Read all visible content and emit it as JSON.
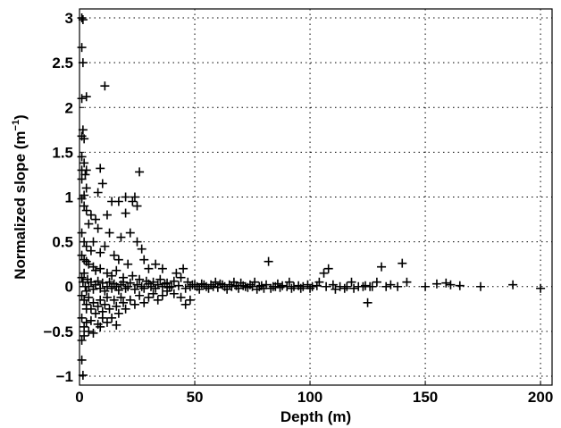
{
  "chart_data": {
    "type": "scatter",
    "marker": "+",
    "xlabel": "Depth (m)",
    "ylabel": {
      "prefix": "Normalized slope (m",
      "superscript": "−1",
      "suffix": ")"
    },
    "xlim": [
      0,
      205
    ],
    "ylim": [
      -1.1,
      3.1
    ],
    "xticks": [
      0,
      50,
      100,
      150,
      200
    ],
    "xtick_labels": [
      "0",
      "50",
      "100",
      "150",
      "200"
    ],
    "yticks": [
      -1,
      -0.5,
      0,
      0.5,
      1,
      1.5,
      2,
      2.5,
      3
    ],
    "ytick_labels": [
      "−1",
      "−0.5",
      "0",
      "0.5",
      "1",
      "1.5",
      "2",
      "2.5",
      "3"
    ],
    "grid": true,
    "color": "#000000",
    "points": [
      [
        1,
        3.0
      ],
      [
        1.5,
        2.98
      ],
      [
        1,
        2.67
      ],
      [
        1.5,
        2.5
      ],
      [
        1,
        2.1
      ],
      [
        3,
        2.12
      ],
      [
        11,
        2.24
      ],
      [
        1.5,
        1.75
      ],
      [
        1,
        1.68
      ],
      [
        2,
        1.65
      ],
      [
        1,
        1.45
      ],
      [
        2,
        1.38
      ],
      [
        1,
        1.3
      ],
      [
        2.5,
        1.25
      ],
      [
        3,
        1.3
      ],
      [
        9,
        1.32
      ],
      [
        26,
        1.28
      ],
      [
        1,
        1.2
      ],
      [
        3,
        1.1
      ],
      [
        2,
        1.02
      ],
      [
        8,
        1.05
      ],
      [
        10,
        1.15
      ],
      [
        20,
        1.0
      ],
      [
        23,
        0.95
      ],
      [
        17,
        0.95
      ],
      [
        14,
        0.95
      ],
      [
        24,
        1.0
      ],
      [
        25,
        0.9
      ],
      [
        1,
        0.98
      ],
      [
        2,
        0.9
      ],
      [
        3,
        0.85
      ],
      [
        5,
        0.8
      ],
      [
        7,
        0.75
      ],
      [
        12,
        0.8
      ],
      [
        20,
        0.82
      ],
      [
        4,
        0.7
      ],
      [
        8,
        0.65
      ],
      [
        13,
        0.6
      ],
      [
        18,
        0.55
      ],
      [
        22,
        0.6
      ],
      [
        25,
        0.5
      ],
      [
        27,
        0.42
      ],
      [
        1,
        0.6
      ],
      [
        2,
        0.5
      ],
      [
        3,
        0.45
      ],
      [
        5,
        0.4
      ],
      [
        6,
        0.5
      ],
      [
        9,
        0.38
      ],
      [
        11,
        0.45
      ],
      [
        15,
        0.35
      ],
      [
        17,
        0.3
      ],
      [
        21,
        0.25
      ],
      [
        28,
        0.3
      ],
      [
        30,
        0.2
      ],
      [
        33,
        0.25
      ],
      [
        36,
        0.2
      ],
      [
        1,
        0.35
      ],
      [
        2,
        0.3
      ],
      [
        3,
        0.28
      ],
      [
        4,
        0.25
      ],
      [
        6,
        0.22
      ],
      [
        7,
        0.18
      ],
      [
        9,
        0.2
      ],
      [
        12,
        0.15
      ],
      [
        14,
        0.12
      ],
      [
        16,
        0.18
      ],
      [
        19,
        0.1
      ],
      [
        23,
        0.12
      ],
      [
        26,
        0.08
      ],
      [
        29,
        0.06
      ],
      [
        32,
        0.05
      ],
      [
        35,
        0.08
      ],
      [
        38,
        0.04
      ],
      [
        41,
        0.06
      ],
      [
        44,
        0.1
      ],
      [
        42,
        0.15
      ],
      [
        45,
        0.2
      ],
      [
        47,
        0.05
      ],
      [
        49,
        0.02
      ],
      [
        51,
        0.0
      ],
      [
        53,
        0.03
      ],
      [
        55,
        0.0
      ],
      [
        57,
        0.02
      ],
      [
        59,
        0.05
      ],
      [
        61,
        0.03
      ],
      [
        63,
        0.0
      ],
      [
        65,
        0.02
      ],
      [
        68,
        0.01
      ],
      [
        70,
        0.04
      ],
      [
        72,
        0.0
      ],
      [
        74,
        0.02
      ],
      [
        76,
        0.05
      ],
      [
        78,
        0.0
      ],
      [
        80,
        -0.02
      ],
      [
        82,
        0.28
      ],
      [
        84,
        0.0
      ],
      [
        86,
        0.03
      ],
      [
        88,
        0.01
      ],
      [
        91,
        0.05
      ],
      [
        93,
        0.0
      ],
      [
        96,
        -0.02
      ],
      [
        99,
        0.02
      ],
      [
        101,
        0.0
      ],
      [
        106,
        0.15
      ],
      [
        108,
        0.2
      ],
      [
        110,
        0.02
      ],
      [
        113,
        0.0
      ],
      [
        115,
        -0.02
      ],
      [
        118,
        0.05
      ],
      [
        121,
        0.0
      ],
      [
        123,
        0.0
      ],
      [
        125,
        -0.18
      ],
      [
        127,
        0.0
      ],
      [
        129,
        0.05
      ],
      [
        131,
        0.22
      ],
      [
        133,
        0.0
      ],
      [
        135,
        0.02
      ],
      [
        138,
        0.0
      ],
      [
        140,
        0.26
      ],
      [
        142,
        0.05
      ],
      [
        150,
        0.0
      ],
      [
        155,
        0.03
      ],
      [
        159,
        0.04
      ],
      [
        161,
        0.02
      ],
      [
        165,
        0.01
      ],
      [
        174,
        0.0
      ],
      [
        188,
        0.02
      ],
      [
        200,
        -0.02
      ],
      [
        1,
        0.1
      ],
      [
        1.5,
        0.05
      ],
      [
        2,
        0.15
      ],
      [
        2.5,
        0.0
      ],
      [
        3,
        -0.05
      ],
      [
        3.5,
        0.08
      ],
      [
        4,
        0.0
      ],
      [
        5,
        0.05
      ],
      [
        6,
        -0.03
      ],
      [
        7,
        0.02
      ],
      [
        8,
        0.06
      ],
      [
        9,
        -0.02
      ],
      [
        10,
        0.04
      ],
      [
        11,
        -0.05
      ],
      [
        12,
        0.0
      ],
      [
        13,
        0.05
      ],
      [
        14,
        -0.02
      ],
      [
        15,
        0.03
      ],
      [
        16,
        0.0
      ],
      [
        17,
        -0.04
      ],
      [
        18,
        0.02
      ],
      [
        19,
        0.05
      ],
      [
        20,
        -0.02
      ],
      [
        21,
        0.0
      ],
      [
        22,
        0.04
      ],
      [
        24,
        -0.03
      ],
      [
        25,
        0.02
      ],
      [
        27,
        0.0
      ],
      [
        28,
        -0.02
      ],
      [
        30,
        0.03
      ],
      [
        31,
        0.0
      ],
      [
        33,
        -0.02
      ],
      [
        34,
        0.02
      ],
      [
        36,
        0.0
      ],
      [
        37,
        0.03
      ],
      [
        39,
        -0.01
      ],
      [
        40,
        0.0
      ],
      [
        43,
        0.01
      ],
      [
        46,
        -0.02
      ],
      [
        48,
        0.0
      ],
      [
        50,
        0.02
      ],
      [
        52,
        -0.03
      ],
      [
        54,
        0.02
      ],
      [
        56,
        -0.02
      ],
      [
        58,
        0.0
      ],
      [
        60,
        -0.01
      ],
      [
        62,
        0.02
      ],
      [
        64,
        -0.03
      ],
      [
        66,
        0.0
      ],
      [
        67,
        0.05
      ],
      [
        69,
        -0.02
      ],
      [
        71,
        0.01
      ],
      [
        73,
        -0.01
      ],
      [
        75,
        0.0
      ],
      [
        77,
        -0.03
      ],
      [
        79,
        0.01
      ],
      [
        81,
        0.02
      ],
      [
        83,
        -0.02
      ],
      [
        85,
        0.0
      ],
      [
        87,
        -0.01
      ],
      [
        90,
        0.0
      ],
      [
        92,
        -0.02
      ],
      [
        95,
        0.01
      ],
      [
        97,
        0.0
      ],
      [
        100,
        -0.02
      ],
      [
        103,
        0.01
      ],
      [
        104,
        0.05
      ],
      [
        107,
        0.0
      ],
      [
        111,
        -0.03
      ],
      [
        116,
        0.0
      ],
      [
        119,
        -0.02
      ],
      [
        124,
        0.01
      ],
      [
        126,
        0.0
      ],
      [
        1,
        -0.1
      ],
      [
        2,
        -0.15
      ],
      [
        3,
        -0.2
      ],
      [
        4,
        -0.12
      ],
      [
        5,
        -0.25
      ],
      [
        6,
        -0.18
      ],
      [
        7,
        -0.3
      ],
      [
        8,
        -0.22
      ],
      [
        9,
        -0.15
      ],
      [
        10,
        -0.28
      ],
      [
        11,
        -0.2
      ],
      [
        12,
        -0.12
      ],
      [
        13,
        -0.25
      ],
      [
        14,
        -0.35
      ],
      [
        15,
        -0.15
      ],
      [
        16,
        -0.22
      ],
      [
        17,
        -0.3
      ],
      [
        18,
        -0.12
      ],
      [
        19,
        -0.18
      ],
      [
        20,
        -0.25
      ],
      [
        22,
        -0.15
      ],
      [
        24,
        -0.2
      ],
      [
        26,
        -0.1
      ],
      [
        28,
        -0.18
      ],
      [
        30,
        -0.12
      ],
      [
        32,
        -0.08
      ],
      [
        34,
        -0.15
      ],
      [
        36,
        -0.1
      ],
      [
        38,
        -0.05
      ],
      [
        41,
        -0.08
      ],
      [
        44,
        -0.12
      ],
      [
        46,
        -0.2
      ],
      [
        48,
        -0.15
      ],
      [
        1,
        -0.35
      ],
      [
        2,
        -0.45
      ],
      [
        3,
        -0.4
      ],
      [
        4,
        -0.5
      ],
      [
        5,
        -0.38
      ],
      [
        6,
        -0.52
      ],
      [
        8,
        -0.42
      ],
      [
        10,
        -0.35
      ],
      [
        12,
        -0.4
      ],
      [
        16,
        -0.43
      ],
      [
        1,
        -0.6
      ],
      [
        2,
        -0.55
      ],
      [
        1,
        -0.82
      ],
      [
        1.5,
        -0.99
      ],
      [
        3,
        -0.25
      ],
      [
        9,
        -0.45
      ]
    ]
  }
}
